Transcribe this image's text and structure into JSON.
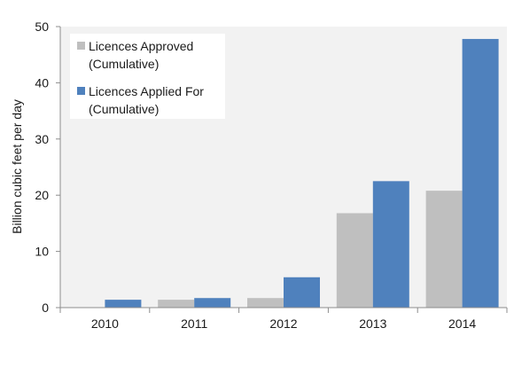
{
  "chart_data": {
    "type": "bar",
    "categories": [
      "2010",
      "2011",
      "2012",
      "2013",
      "2014"
    ],
    "series": [
      {
        "name_lines": [
          "Licences Approved",
          "(Cumulative)"
        ],
        "color": "#bfbfbf",
        "values": [
          0,
          1.4,
          1.7,
          16.8,
          20.8
        ]
      },
      {
        "name_lines": [
          "Licences Applied For",
          "(Cumulative)"
        ],
        "color": "#4f81bd",
        "values": [
          1.4,
          1.7,
          5.4,
          22.5,
          47.8
        ]
      }
    ],
    "ylabel": "Billion cubic feet per day",
    "ylim": [
      0,
      50
    ],
    "yticks": [
      0,
      10,
      20,
      30,
      40,
      50
    ],
    "grid": false,
    "plot_background": "#f2f2f2",
    "legend_background": "#ffffff",
    "legend_position": "top-left"
  }
}
